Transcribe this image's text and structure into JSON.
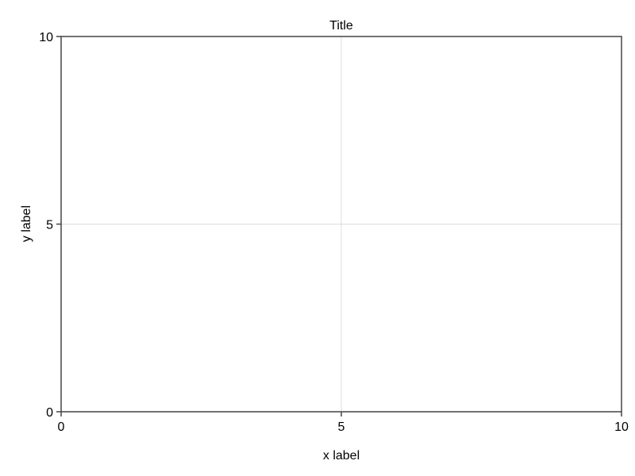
{
  "chart_data": {
    "type": "line",
    "title": "Title",
    "xlabel": "x label",
    "ylabel": "y label",
    "xlim": [
      0,
      10
    ],
    "ylim": [
      0,
      10
    ],
    "xticks": [
      0,
      5,
      10
    ],
    "yticks": [
      0,
      5,
      10
    ],
    "xtick_labels": [
      "0",
      "5",
      "10"
    ],
    "ytick_labels": [
      "0",
      "5",
      "10"
    ],
    "grid": true,
    "series": []
  },
  "colors": {
    "background": "#ffffff",
    "frame": "#444444",
    "grid": "#dddddd",
    "text": "#000000"
  }
}
